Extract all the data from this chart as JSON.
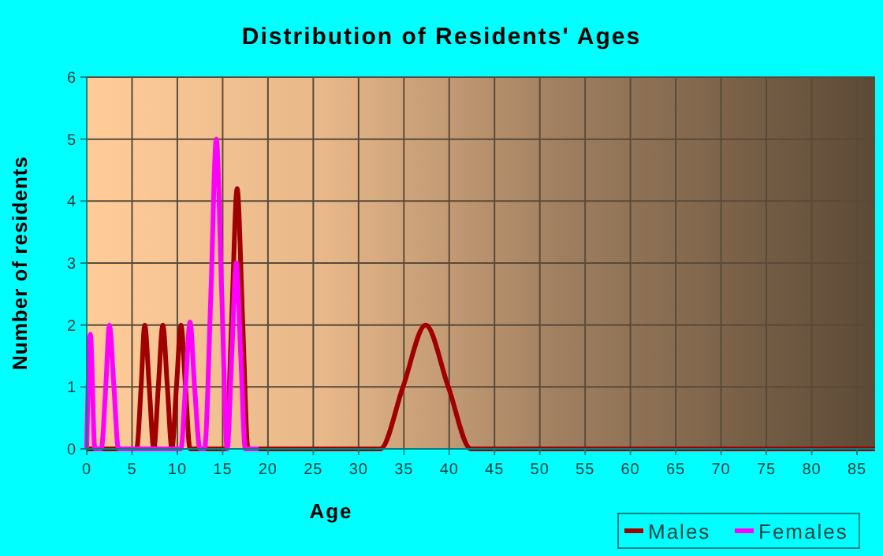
{
  "chart_data": {
    "type": "line",
    "title": "Distribution of Residents' Ages",
    "xlabel": "Age",
    "ylabel": "Number of residents",
    "xlim": [
      0,
      87
    ],
    "xticks": [
      0,
      5,
      10,
      15,
      20,
      25,
      30,
      35,
      40,
      45,
      50,
      55,
      60,
      65,
      70,
      75,
      80,
      85
    ],
    "ylim": [
      0,
      6
    ],
    "yticks": [
      0,
      1,
      2,
      3,
      4,
      5,
      6
    ],
    "grid": true,
    "legend": "bottom right",
    "marker": "none",
    "line_style": "solid",
    "series": [
      {
        "name": "Males",
        "color": "#a00000",
        "x": [
          0,
          5.5,
          6,
          6.4,
          6.9,
          7.4,
          7.9,
          8.4,
          8.9,
          9.4,
          9.9,
          10.4,
          10.9,
          11.4,
          15.4,
          16,
          16.6,
          17.2,
          17.8,
          32.4,
          34.9,
          37.4,
          39.9,
          42.4,
          87
        ],
        "values": [
          0,
          0,
          1,
          2,
          1,
          0,
          1,
          2,
          1,
          0,
          1,
          2,
          1,
          0,
          0,
          2.1,
          4.2,
          2.1,
          0,
          0,
          1,
          2,
          1,
          0,
          0
        ]
      },
      {
        "name": "Females",
        "color": "#ff00ff",
        "x": [
          0,
          0.4,
          0.9,
          1.6,
          2.1,
          2.5,
          3,
          3.5,
          10.4,
          10.9,
          11.4,
          11.9,
          12.5,
          13,
          13.7,
          14.3,
          14.9,
          15.5,
          16,
          16.5,
          17,
          17.5,
          19
        ],
        "values": [
          0,
          1.85,
          0,
          0,
          1,
          2,
          1,
          0,
          0,
          1,
          2.05,
          1,
          0,
          0,
          2.5,
          5,
          2.5,
          0,
          1.5,
          3,
          1.5,
          0,
          0
        ]
      }
    ]
  }
}
